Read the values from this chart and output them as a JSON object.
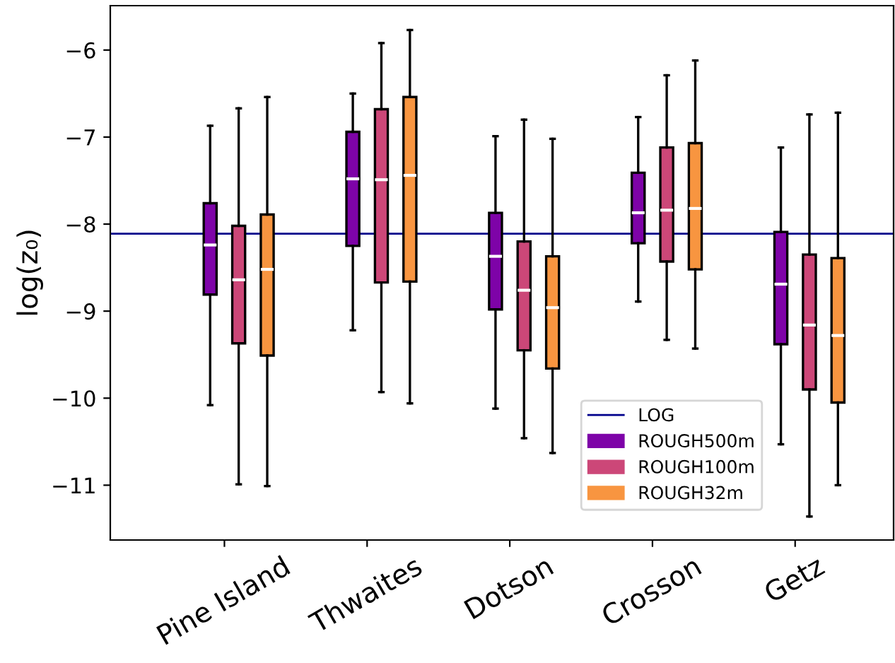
{
  "chart_data": {
    "type": "box",
    "ylabel": "log(z₀)",
    "categories": [
      "Pine Island",
      "Thwaites",
      "Dotson",
      "Crosson",
      "Getz"
    ],
    "ylim": [
      -11.63,
      -5.49
    ],
    "yticks": [
      -11,
      -10,
      -9,
      -8,
      -7,
      -6
    ],
    "grid": false,
    "legend": "bottom right",
    "ref_lines": [
      {
        "axis": "y",
        "value": -8.11,
        "label": "LOG",
        "color": "#00008b",
        "line_style": "solid"
      }
    ],
    "series": [
      {
        "name": "ROUGH500m",
        "color": "#7e03a8",
        "boxes": [
          {
            "low": -10.08,
            "q1": -8.81,
            "median": -8.24,
            "q3": -7.76,
            "high": -6.87
          },
          {
            "low": -9.22,
            "q1": -8.25,
            "median": -7.48,
            "q3": -6.94,
            "high": -6.5
          },
          {
            "low": -10.12,
            "q1": -8.98,
            "median": -8.37,
            "q3": -7.87,
            "high": -6.99
          },
          {
            "low": -8.89,
            "q1": -8.22,
            "median": -7.87,
            "q3": -7.41,
            "high": -6.77
          },
          {
            "low": -10.53,
            "q1": -9.38,
            "median": -8.69,
            "q3": -8.09,
            "high": -7.12
          }
        ]
      },
      {
        "name": "ROUGH100m",
        "color": "#cc4778",
        "boxes": [
          {
            "low": -10.99,
            "q1": -9.37,
            "median": -8.64,
            "q3": -8.02,
            "high": -6.67
          },
          {
            "low": -9.93,
            "q1": -8.67,
            "median": -7.49,
            "q3": -6.68,
            "high": -5.92
          },
          {
            "low": -10.46,
            "q1": -9.45,
            "median": -8.76,
            "q3": -8.2,
            "high": -6.8
          },
          {
            "low": -9.33,
            "q1": -8.43,
            "median": -7.84,
            "q3": -7.12,
            "high": -6.29
          },
          {
            "low": -11.36,
            "q1": -9.9,
            "median": -9.16,
            "q3": -8.35,
            "high": -6.74
          }
        ]
      },
      {
        "name": "ROUGH32m",
        "color": "#f89540",
        "boxes": [
          {
            "low": -11.01,
            "q1": -9.51,
            "median": -8.52,
            "q3": -7.89,
            "high": -6.54
          },
          {
            "low": -10.06,
            "q1": -8.66,
            "median": -7.44,
            "q3": -6.54,
            "high": -5.77
          },
          {
            "low": -10.63,
            "q1": -9.66,
            "median": -8.96,
            "q3": -8.37,
            "high": -7.02
          },
          {
            "low": -9.43,
            "q1": -8.52,
            "median": -7.82,
            "q3": -7.07,
            "high": -6.12
          },
          {
            "low": -11.0,
            "q1": -10.05,
            "median": -9.28,
            "q3": -8.39,
            "high": -6.72
          }
        ]
      }
    ]
  }
}
